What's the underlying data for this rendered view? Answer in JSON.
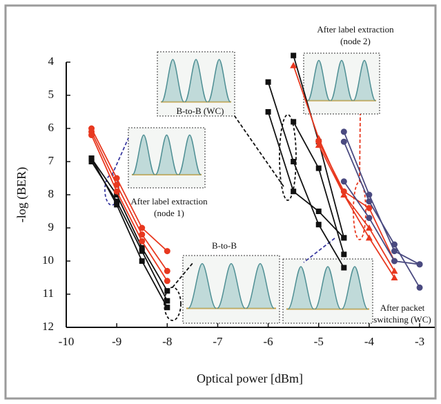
{
  "chart_data": {
    "type": "line",
    "xlabel": "Optical power [dBm]",
    "ylabel": "-log (BER)",
    "x": [
      -9.5,
      -9,
      -8.5,
      -8,
      -6,
      -5.5,
      -5,
      -4.5,
      -4,
      -3.5,
      -3
    ],
    "xlim": [
      -10,
      -2.7
    ],
    "xticks": [
      -10,
      -9,
      -8,
      -7,
      -6,
      -5,
      -4,
      -3
    ],
    "ylim": [
      12,
      4
    ],
    "yticks": [
      4,
      5,
      6,
      7,
      8,
      9,
      10,
      11,
      12
    ],
    "series": [
      {
        "color": "#111111",
        "marker": "square",
        "values": [
          6.9,
          8.3,
          10.0,
          11.4,
          null,
          null,
          null,
          null,
          null,
          null,
          null
        ]
      },
      {
        "color": "#111111",
        "marker": "square",
        "values": [
          7.0,
          8.2,
          9.7,
          11.2,
          null,
          null,
          null,
          null,
          null,
          null,
          null
        ]
      },
      {
        "color": "#111111",
        "marker": "square",
        "values": [
          6.9,
          8.0,
          9.6,
          10.9,
          null,
          null,
          null,
          null,
          null,
          null,
          null
        ]
      },
      {
        "color": "#e8381f",
        "marker": "circle",
        "values": [
          6.0,
          7.5,
          9.0,
          9.7,
          null,
          null,
          null,
          null,
          null,
          null,
          null
        ]
      },
      {
        "color": "#e8381f",
        "marker": "circle",
        "values": [
          6.1,
          7.7,
          9.2,
          10.3,
          null,
          null,
          null,
          null,
          null,
          null,
          null
        ]
      },
      {
        "color": "#e8381f",
        "marker": "circle",
        "values": [
          6.2,
          7.9,
          9.4,
          10.6,
          null,
          null,
          null,
          null,
          null,
          null,
          null
        ]
      },
      {
        "color": "#111111",
        "marker": "square",
        "values": [
          null,
          null,
          null,
          null,
          4.6,
          7.0,
          8.9,
          10.2,
          null,
          null,
          null
        ]
      },
      {
        "color": "#111111",
        "marker": "square",
        "values": [
          null,
          null,
          null,
          null,
          5.5,
          7.9,
          8.5,
          9.3,
          null,
          null,
          null
        ]
      },
      {
        "color": "#111111",
        "marker": "square",
        "values": [
          null,
          null,
          null,
          null,
          null,
          3.8,
          6.4,
          9.3,
          null,
          null,
          null
        ]
      },
      {
        "color": "#111111",
        "marker": "square",
        "values": [
          null,
          null,
          null,
          null,
          null,
          5.8,
          7.2,
          9.8,
          null,
          null,
          null
        ]
      },
      {
        "color": "#e8381f",
        "marker": "triangle",
        "values": [
          null,
          null,
          null,
          null,
          null,
          4.1,
          6.3,
          8.0,
          9.3,
          10.5,
          null
        ]
      },
      {
        "color": "#e8381f",
        "marker": "triangle",
        "values": [
          null,
          null,
          null,
          null,
          null,
          null,
          6.5,
          8.0,
          9.0,
          10.3,
          null
        ]
      },
      {
        "color": "#e8381f",
        "marker": "circle",
        "values": [
          null,
          null,
          null,
          null,
          null,
          null,
          6.4,
          7.9,
          8.4,
          10.0,
          null
        ]
      },
      {
        "color": "#4a4a80",
        "marker": "circle",
        "values": [
          null,
          null,
          null,
          null,
          null,
          null,
          null,
          6.1,
          8.0,
          9.7,
          10.1
        ]
      },
      {
        "color": "#4a4a80",
        "marker": "circle",
        "values": [
          null,
          null,
          null,
          null,
          null,
          null,
          null,
          6.4,
          8.2,
          9.5,
          10.8
        ]
      },
      {
        "color": "#4a4a80",
        "marker": "circle",
        "values": [
          null,
          null,
          null,
          null,
          null,
          null,
          null,
          7.6,
          8.7,
          10.0,
          10.1
        ]
      }
    ],
    "annotations": [
      {
        "lines": [
          "After label extraction",
          "(node 2)"
        ]
      },
      {
        "lines": [
          "B-to-B (WC)"
        ]
      },
      {
        "lines": [
          "After label extraction",
          "(node 1)"
        ]
      },
      {
        "lines": [
          "B-to-B"
        ]
      },
      {
        "lines": [
          "After packet",
          "switching (WC)"
        ]
      }
    ]
  }
}
